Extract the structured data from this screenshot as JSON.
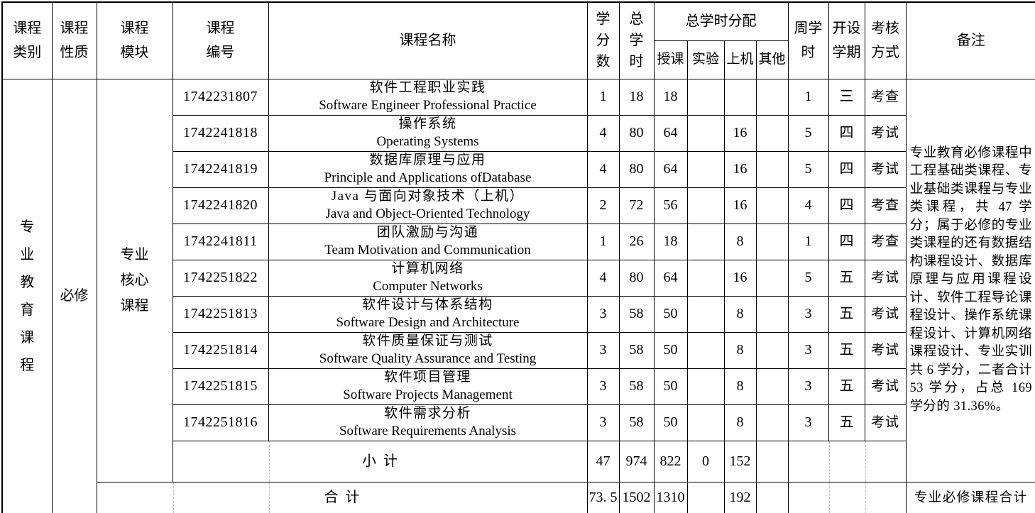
{
  "colors": {
    "border": "#000000",
    "dashed_grid": "#bdbdbd",
    "text": "#000000",
    "background": "#ffffff"
  },
  "columns": {
    "category": "课程类别",
    "nature": "课程性质",
    "module": "课程模块",
    "code": "课程编号",
    "name": "课程名称",
    "credits": "学分数",
    "total_hours": "总学时",
    "hours_dist": "总学时分配",
    "lecture": "授课",
    "experiment": "实验",
    "computer": "上机",
    "other": "其他",
    "weekly_hours": "周学时",
    "semester": "开设学期",
    "assessment": "考核方式",
    "remarks": "备注"
  },
  "body": {
    "category": "专业教育课程",
    "nature": "必修",
    "module": "专业核心课程",
    "courses": [
      {
        "code": "1742231807",
        "zh": "软件工程职业实践",
        "en": "Software Engineer Professional Practice",
        "credits": "1",
        "total": "18",
        "lecture": "18",
        "exp": "",
        "comp": "",
        "other": "",
        "weekly": "1",
        "sem": "三",
        "exam": "考查"
      },
      {
        "code": "1742241818",
        "zh": "操作系统",
        "en": "Operating Systems",
        "credits": "4",
        "total": "80",
        "lecture": "64",
        "exp": "",
        "comp": "16",
        "other": "",
        "weekly": "5",
        "sem": "四",
        "exam": "考试"
      },
      {
        "code": "1742241819",
        "zh": "数据库原理与应用",
        "en": "Principle and Applications ofDatabase",
        "credits": "4",
        "total": "80",
        "lecture": "64",
        "exp": "",
        "comp": "16",
        "other": "",
        "weekly": "5",
        "sem": "四",
        "exam": "考试"
      },
      {
        "code": "1742241820",
        "zh": "Java 与面向对象技术（上机）",
        "en": "Java and Object-Oriented Technology",
        "credits": "2",
        "total": "72",
        "lecture": "56",
        "exp": "",
        "comp": "16",
        "other": "",
        "weekly": "4",
        "sem": "四",
        "exam": "考查"
      },
      {
        "code": "1742241811",
        "zh": "团队激励与沟通",
        "en": "Team Motivation and Communication",
        "credits": "1",
        "total": "26",
        "lecture": "18",
        "exp": "",
        "comp": "8",
        "other": "",
        "weekly": "1",
        "sem": "四",
        "exam": "考查"
      },
      {
        "code": "1742251822",
        "zh": "计算机网络",
        "en": "Computer Networks",
        "credits": "4",
        "total": "80",
        "lecture": "64",
        "exp": "",
        "comp": "16",
        "other": "",
        "weekly": "5",
        "sem": "五",
        "exam": "考试"
      },
      {
        "code": "1742251813",
        "zh": "软件设计与体系结构",
        "en": "Software Design and Architecture",
        "credits": "3",
        "total": "58",
        "lecture": "50",
        "exp": "",
        "comp": "8",
        "other": "",
        "weekly": "3",
        "sem": "五",
        "exam": "考试"
      },
      {
        "code": "1742251814",
        "zh": "软件质量保证与测试",
        "en": "Software Quality Assurance and Testing",
        "credits": "3",
        "total": "58",
        "lecture": "50",
        "exp": "",
        "comp": "8",
        "other": "",
        "weekly": "3",
        "sem": "五",
        "exam": "考试"
      },
      {
        "code": "1742251815",
        "zh": "软件项目管理",
        "en": "Software Projects Management",
        "credits": "3",
        "total": "58",
        "lecture": "50",
        "exp": "",
        "comp": "8",
        "other": "",
        "weekly": "3",
        "sem": "五",
        "exam": "考试"
      },
      {
        "code": "1742251816",
        "zh": "软件需求分析",
        "en": "Software Requirements Analysis",
        "credits": "3",
        "total": "58",
        "lecture": "50",
        "exp": "",
        "comp": "8",
        "other": "",
        "weekly": "3",
        "sem": "五",
        "exam": "考试"
      }
    ],
    "subtotal": {
      "label": "小计",
      "credits": "47",
      "total": "974",
      "lecture": "822",
      "exp": "0",
      "comp": "152",
      "other": ""
    },
    "total": {
      "label": "合计",
      "credits": "73. 5",
      "total": "1502",
      "lecture": "1310",
      "exp": "",
      "comp": "192",
      "other": "",
      "remark": "专业必修课程合计"
    },
    "remark": "专业教育必修课程中工程基础类课程、专业基础类课程与专业类课程，共 47 学分；属于必修的专业类课程的还有数据结构课程设计、数据库原理与应用课程设计、软件工程导论课程设计、操作系统课程设计、计算机网络课程设计、专业实训共 6 学分，二者合计 53 学分，占总 169 学分的 31.36%。"
  }
}
